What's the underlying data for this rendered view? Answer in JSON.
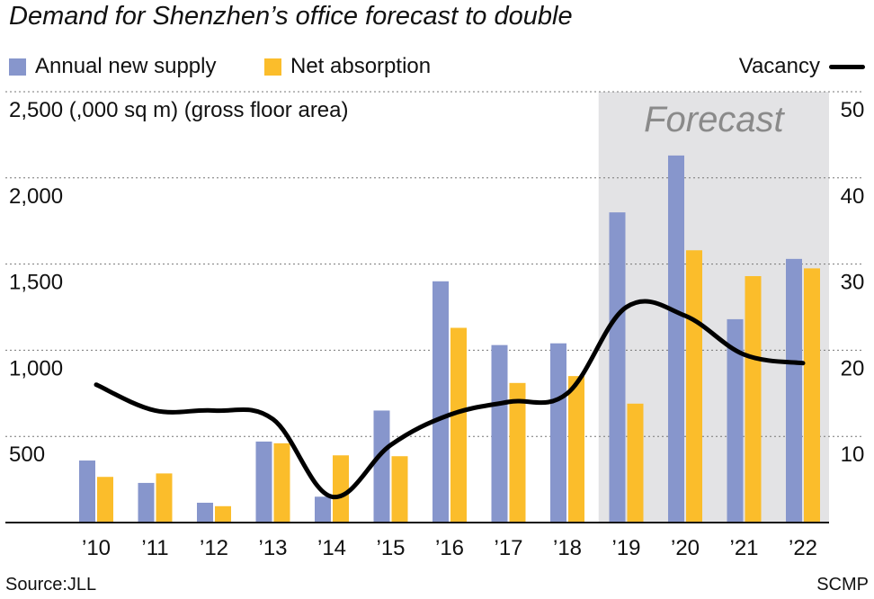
{
  "title": "Demand for Shenzhen’s office forecast to double",
  "legend": {
    "supply_label": "Annual new supply",
    "absorption_label": "Net absorption",
    "vacancy_label": "Vacancy"
  },
  "colors": {
    "supply": "#8796cc",
    "absorption": "#fbbd2b",
    "vacancy": "#000000",
    "forecast_bg": "#e3e3e5",
    "forecast_text": "#8a8a8a"
  },
  "footer": {
    "source": "Source:JLL",
    "credit": "SCMP"
  },
  "chart_data": {
    "type": "bar",
    "title": "Demand for Shenzhen’s office forecast to double",
    "ylabel": "2,500 (,000 sq m) (gross floor area)",
    "ylim": [
      0,
      2500
    ],
    "y_ticks": [
      "500",
      "1,000",
      "1,500",
      "2,000",
      "2,500"
    ],
    "y2lim": [
      0,
      50
    ],
    "y2_ticks": [
      "10",
      "20",
      "30",
      "40",
      "50"
    ],
    "categories": [
      "’10",
      "’11",
      "’12",
      "’13",
      "’14",
      "’15",
      "’16",
      "’17",
      "’18",
      "’19",
      "’20",
      "’21",
      "’22"
    ],
    "forecast_label": "Forecast",
    "forecast_from": "’19",
    "grid": true,
    "legend_position": "top",
    "series": [
      {
        "name": "Annual new supply",
        "type": "bar",
        "values": [
          360,
          230,
          115,
          470,
          150,
          650,
          1400,
          1030,
          1040,
          1800,
          2130,
          1180,
          1530
        ]
      },
      {
        "name": "Net absorption",
        "type": "bar",
        "values": [
          265,
          285,
          95,
          460,
          390,
          385,
          1130,
          810,
          850,
          690,
          1580,
          1430,
          1475
        ]
      },
      {
        "name": "Vacancy",
        "type": "line",
        "axis": "right",
        "values": [
          16,
          13,
          13,
          12,
          3,
          9,
          12.5,
          14,
          15,
          25,
          24,
          19.5,
          18.5
        ]
      }
    ]
  }
}
